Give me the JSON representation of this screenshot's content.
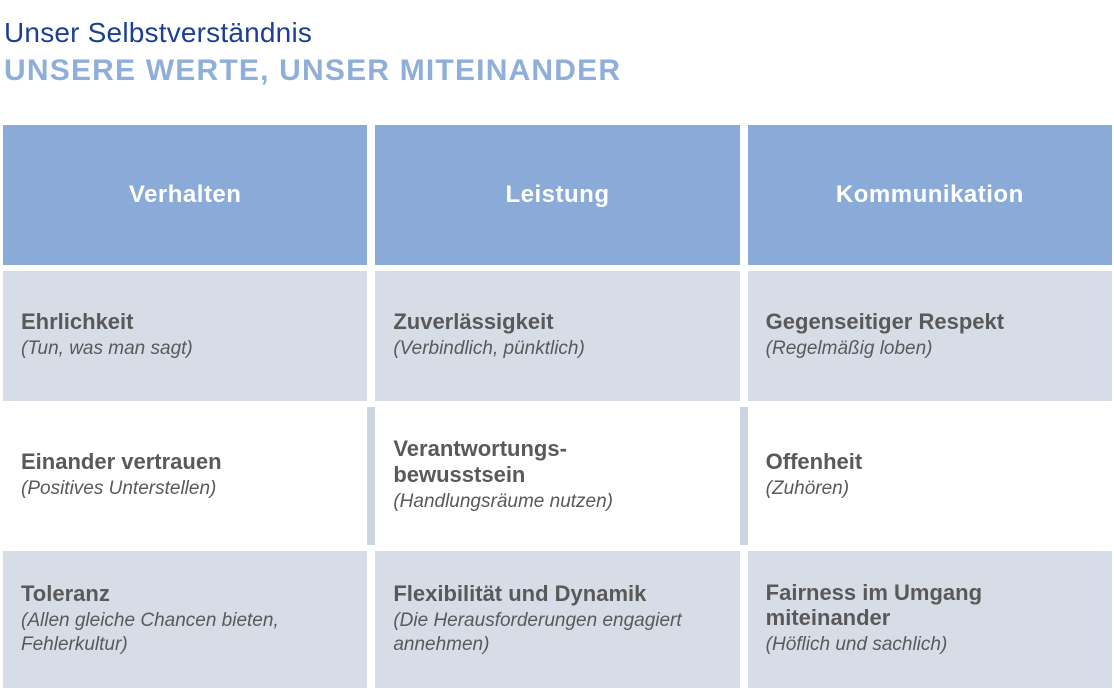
{
  "heading": {
    "title": "Unser Selbstverständnis",
    "subtitle": "UNSERE WERTE, UNSER MITEINANDER"
  },
  "colors": {
    "title_blue": "#1c3f94",
    "subtitle_blue": "#8fafda",
    "header_bg": "#8aabd8",
    "header_text": "#ffffff",
    "row_bg": "#d7dde7",
    "row2_divider": "#cdd4e1",
    "cell_text": "#595959",
    "page_bg": "#ffffff"
  },
  "table": {
    "headers": [
      "Verhalten",
      "Leistung",
      "Kommunikation"
    ],
    "rows": [
      {
        "cells": [
          {
            "title": "Ehrlichkeit",
            "subtitle": "(Tun, was man sagt)"
          },
          {
            "title": "Zuverlässigkeit",
            "subtitle": "(Verbindlich, pünktlich)"
          },
          {
            "title": "Gegenseitiger Respekt",
            "subtitle": "(Regelmäßig loben)"
          }
        ]
      },
      {
        "cells": [
          {
            "title": "Einander vertrauen",
            "subtitle": "(Positives Unterstellen)"
          },
          {
            "title": "Verantwortungs-\nbewusstsein",
            "subtitle": "(Handlungsräume nutzen)"
          },
          {
            "title": "Offenheit",
            "subtitle": "(Zuhören)"
          }
        ]
      },
      {
        "cells": [
          {
            "title": "Toleranz",
            "subtitle": "(Allen gleiche Chancen bieten, Fehlerkultur)"
          },
          {
            "title": "Flexibilität und Dynamik",
            "subtitle": "(Die Herausforderungen engagiert annehmen)"
          },
          {
            "title": "Fairness im Umgang miteinander",
            "subtitle": "(Höflich und sachlich)"
          }
        ]
      }
    ]
  }
}
